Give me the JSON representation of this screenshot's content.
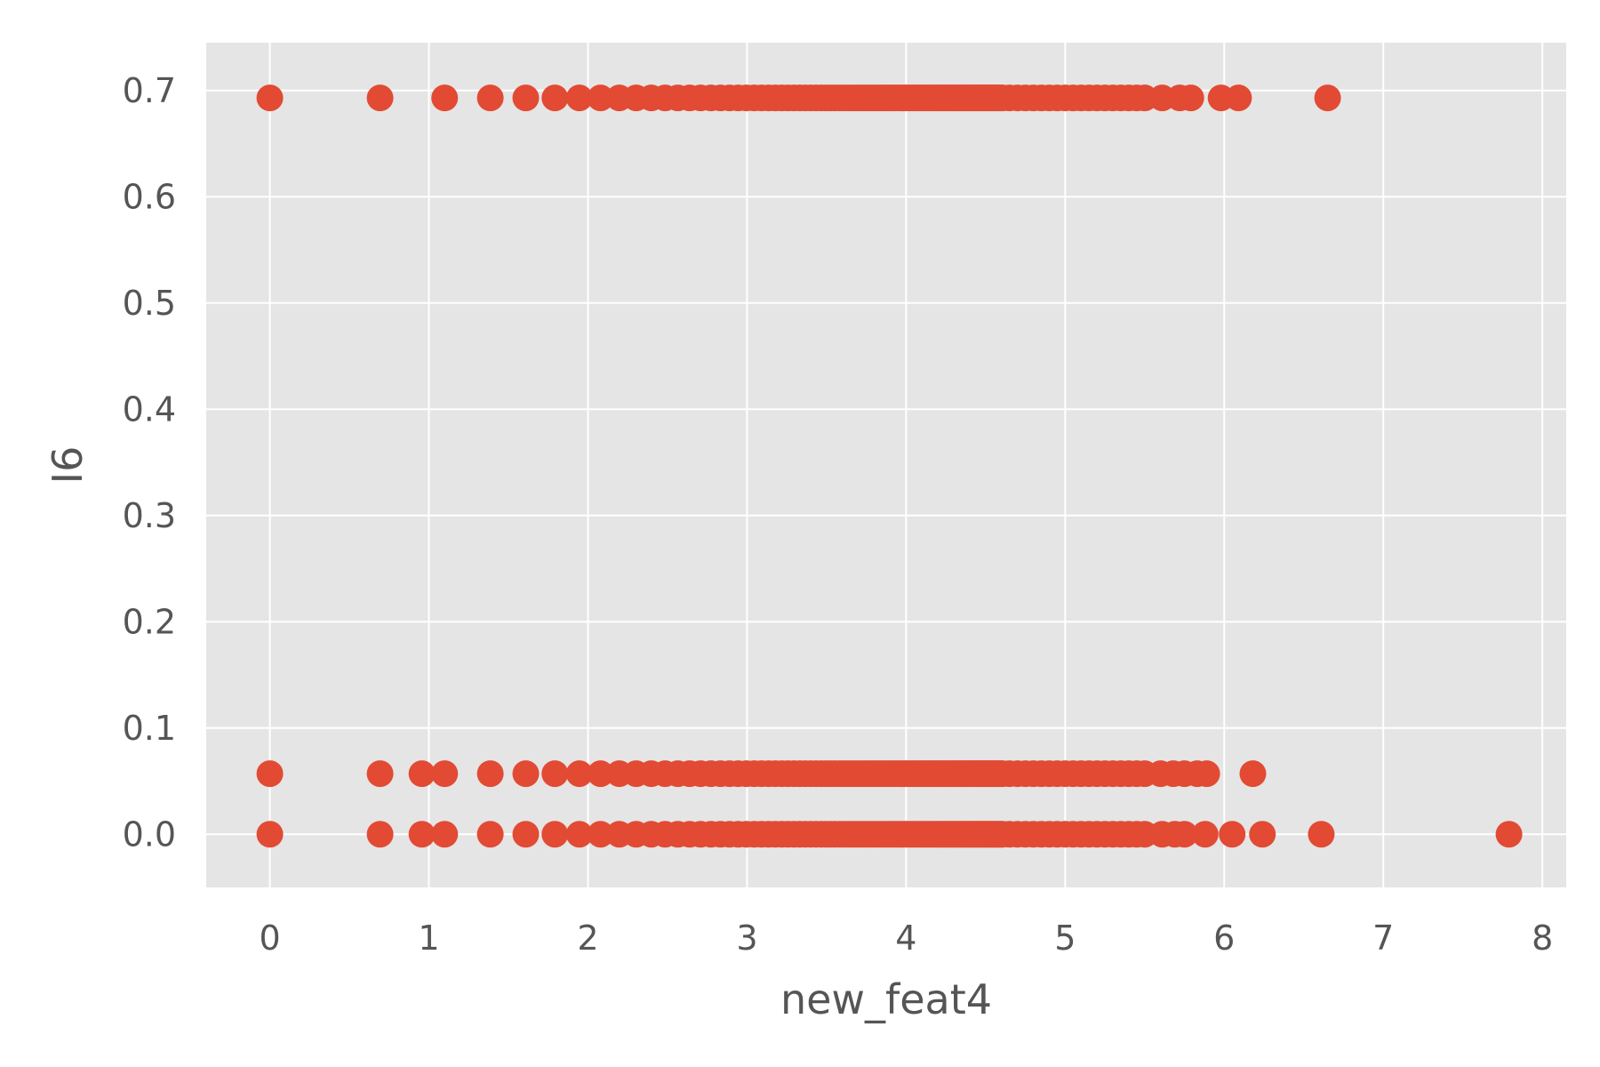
{
  "chart_data": {
    "type": "scatter",
    "title": "",
    "xlabel": "new_feat4",
    "ylabel": "I6",
    "xlim": [
      -0.4,
      8.15
    ],
    "ylim": [
      -0.05,
      0.745
    ],
    "xticks": [
      0,
      1,
      2,
      3,
      4,
      5,
      6,
      7,
      8
    ],
    "yticks": [
      0.0,
      0.1,
      0.2,
      0.3,
      0.4,
      0.5,
      0.6,
      0.7
    ],
    "xtick_labels": [
      "0",
      "1",
      "2",
      "3",
      "4",
      "5",
      "6",
      "7",
      "8"
    ],
    "ytick_labels": [
      "0.0",
      "0.1",
      "0.2",
      "0.3",
      "0.4",
      "0.5",
      "0.6",
      "0.7"
    ],
    "grid": true,
    "background_color": "#e5e5e5",
    "grid_color": "#ffffff",
    "marker_color": "#e24a33",
    "series": [
      {
        "name": "I6 = 0.693",
        "y": 0.693,
        "x": [
          0,
          0.693,
          1.099,
          1.386,
          1.609,
          1.792,
          1.946,
          2.079,
          2.197,
          2.303,
          2.398,
          2.485,
          2.565,
          2.639,
          2.708,
          2.773,
          2.833,
          2.89,
          2.944,
          2.996,
          3.045,
          3.091,
          3.136,
          3.178,
          3.219,
          3.258,
          3.296,
          3.332,
          3.367,
          3.401,
          3.434,
          3.466,
          3.497,
          3.526,
          3.555,
          3.584,
          3.611,
          3.638,
          3.664,
          3.689,
          3.714,
          3.738,
          3.761,
          3.784,
          3.807,
          3.829,
          3.85,
          3.871,
          3.892,
          3.912,
          3.932,
          3.951,
          3.97,
          3.989,
          4.007,
          4.025,
          4.043,
          4.06,
          4.078,
          4.094,
          4.111,
          4.127,
          4.143,
          4.159,
          4.174,
          4.19,
          4.205,
          4.22,
          4.234,
          4.248,
          4.263,
          4.277,
          4.29,
          4.304,
          4.317,
          4.331,
          4.344,
          4.357,
          4.369,
          4.382,
          4.394,
          4.407,
          4.419,
          4.431,
          4.443,
          4.454,
          4.466,
          4.477,
          4.489,
          4.5,
          4.511,
          4.522,
          4.533,
          4.543,
          4.554,
          4.564,
          4.575,
          4.585,
          4.595,
          4.605,
          4.65,
          4.7,
          4.75,
          4.8,
          4.85,
          4.9,
          4.95,
          5.0,
          5.05,
          5.1,
          5.15,
          5.2,
          5.25,
          5.3,
          5.35,
          5.4,
          5.45,
          5.5,
          5.61,
          5.72,
          5.79,
          5.98,
          6.09,
          6.65
        ]
      },
      {
        "name": "I6 = 0.057",
        "y": 0.057,
        "x": [
          0,
          0.693,
          0.956,
          1.099,
          1.386,
          1.609,
          1.792,
          1.946,
          2.079,
          2.197,
          2.303,
          2.398,
          2.485,
          2.565,
          2.639,
          2.708,
          2.773,
          2.833,
          2.89,
          2.944,
          2.996,
          3.045,
          3.091,
          3.136,
          3.178,
          3.219,
          3.258,
          3.296,
          3.332,
          3.367,
          3.401,
          3.434,
          3.466,
          3.497,
          3.526,
          3.555,
          3.584,
          3.611,
          3.638,
          3.664,
          3.689,
          3.714,
          3.738,
          3.761,
          3.784,
          3.807,
          3.829,
          3.85,
          3.871,
          3.892,
          3.912,
          3.932,
          3.951,
          3.97,
          3.989,
          4.007,
          4.025,
          4.043,
          4.06,
          4.078,
          4.094,
          4.111,
          4.127,
          4.143,
          4.159,
          4.174,
          4.19,
          4.205,
          4.22,
          4.234,
          4.248,
          4.263,
          4.277,
          4.29,
          4.304,
          4.317,
          4.331,
          4.344,
          4.357,
          4.369,
          4.382,
          4.394,
          4.407,
          4.419,
          4.431,
          4.443,
          4.454,
          4.466,
          4.477,
          4.489,
          4.5,
          4.511,
          4.522,
          4.533,
          4.543,
          4.554,
          4.564,
          4.575,
          4.585,
          4.595,
          4.605,
          4.65,
          4.7,
          4.75,
          4.8,
          4.85,
          4.9,
          4.95,
          5.0,
          5.05,
          5.1,
          5.15,
          5.2,
          5.25,
          5.3,
          5.35,
          5.4,
          5.45,
          5.5,
          5.6,
          5.68,
          5.75,
          5.83,
          5.89,
          6.18
        ]
      },
      {
        "name": "I6 = 0.0",
        "y": 0.0,
        "x": [
          0,
          0.693,
          0.956,
          1.099,
          1.386,
          1.609,
          1.792,
          1.946,
          2.079,
          2.197,
          2.303,
          2.398,
          2.485,
          2.565,
          2.639,
          2.708,
          2.773,
          2.833,
          2.89,
          2.944,
          2.996,
          3.045,
          3.091,
          3.136,
          3.178,
          3.219,
          3.258,
          3.296,
          3.332,
          3.367,
          3.401,
          3.434,
          3.466,
          3.497,
          3.526,
          3.555,
          3.584,
          3.611,
          3.638,
          3.664,
          3.689,
          3.714,
          3.738,
          3.761,
          3.784,
          3.807,
          3.829,
          3.85,
          3.871,
          3.892,
          3.912,
          3.932,
          3.951,
          3.97,
          3.989,
          4.007,
          4.025,
          4.043,
          4.06,
          4.078,
          4.094,
          4.111,
          4.127,
          4.143,
          4.159,
          4.174,
          4.19,
          4.205,
          4.22,
          4.234,
          4.248,
          4.263,
          4.277,
          4.29,
          4.304,
          4.317,
          4.331,
          4.344,
          4.357,
          4.369,
          4.382,
          4.394,
          4.407,
          4.419,
          4.431,
          4.443,
          4.454,
          4.466,
          4.477,
          4.489,
          4.5,
          4.511,
          4.522,
          4.533,
          4.543,
          4.554,
          4.564,
          4.575,
          4.585,
          4.595,
          4.605,
          4.65,
          4.7,
          4.75,
          4.8,
          4.85,
          4.9,
          4.95,
          5.0,
          5.05,
          5.1,
          5.15,
          5.2,
          5.25,
          5.3,
          5.35,
          5.4,
          5.45,
          5.5,
          5.61,
          5.69,
          5.75,
          5.88,
          6.05,
          6.24,
          6.61,
          7.79
        ]
      }
    ]
  }
}
